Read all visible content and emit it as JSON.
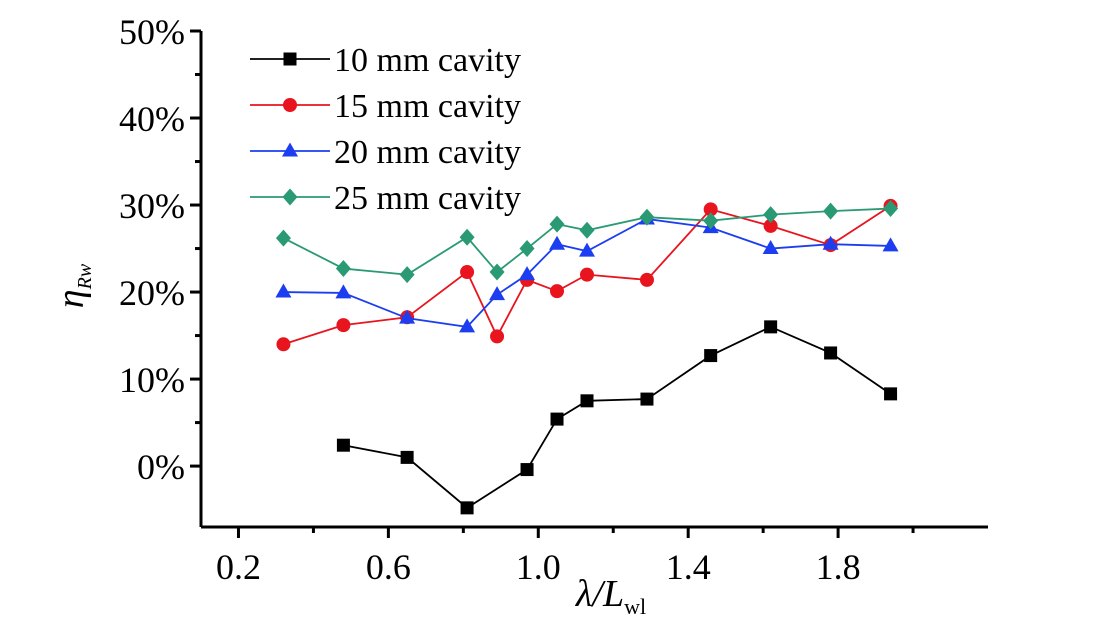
{
  "chart_data": {
    "type": "line",
    "title": "",
    "xlabel": "λ/L",
    "xlabel_subscript": "wl",
    "ylabel": "η",
    "ylabel_subscript": "Rw",
    "xlim": [
      0.1,
      2.2
    ],
    "ylim": [
      -7,
      50
    ],
    "x_ticks": [
      0.2,
      0.6,
      1.0,
      1.4,
      1.8
    ],
    "x_tick_labels": [
      "0.2",
      "0.6",
      "1.0",
      "1.4",
      "1.8"
    ],
    "y_ticks": [
      0,
      10,
      20,
      30,
      40,
      50
    ],
    "y_tick_labels": [
      "0%",
      "10%",
      "20%",
      "30%",
      "40%",
      "50%"
    ],
    "grid": false,
    "legend_position": "top-left",
    "series": [
      {
        "name": "10 mm cavity",
        "color": "#000000",
        "marker": "square",
        "x": [
          0.48,
          0.65,
          0.81,
          0.97,
          1.05,
          1.13,
          1.29,
          1.46,
          1.62,
          1.78,
          1.94
        ],
        "y": [
          2.4,
          1.0,
          -4.8,
          -0.4,
          5.4,
          7.5,
          7.7,
          12.7,
          16.0,
          13.0,
          8.3
        ]
      },
      {
        "name": "15 mm cavity",
        "color": "#e8141e",
        "marker": "circle",
        "x": [
          0.32,
          0.48,
          0.65,
          0.81,
          0.89,
          0.97,
          1.05,
          1.13,
          1.29,
          1.46,
          1.62,
          1.78,
          1.94
        ],
        "y": [
          14.0,
          16.2,
          17.1,
          22.3,
          14.9,
          21.4,
          20.1,
          22.0,
          21.4,
          29.5,
          27.6,
          25.4,
          29.9
        ]
      },
      {
        "name": "20 mm cavity",
        "color": "#1c3ef0",
        "marker": "triangle",
        "x": [
          0.32,
          0.48,
          0.65,
          0.81,
          0.89,
          0.97,
          1.05,
          1.13,
          1.29,
          1.46,
          1.62,
          1.78,
          1.94
        ],
        "y": [
          20.0,
          19.9,
          17.0,
          16.0,
          19.7,
          22.0,
          25.5,
          24.7,
          28.4,
          27.4,
          25.0,
          25.5,
          25.3
        ]
      },
      {
        "name": "25 mm cavity",
        "color": "#2a9a74",
        "marker": "diamond",
        "x": [
          0.32,
          0.48,
          0.65,
          0.81,
          0.89,
          0.97,
          1.05,
          1.13,
          1.29,
          1.46,
          1.62,
          1.78,
          1.94
        ],
        "y": [
          26.2,
          22.7,
          22.0,
          26.3,
          22.3,
          25.0,
          27.8,
          27.1,
          28.6,
          28.2,
          28.9,
          29.3,
          29.6
        ]
      }
    ]
  }
}
